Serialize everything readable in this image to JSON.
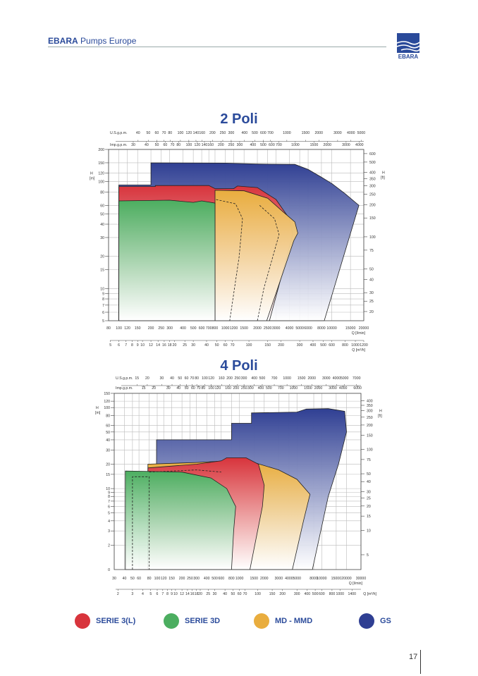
{
  "header": {
    "brand": "EBARA",
    "subtitle": "Pumps Europe",
    "logo_text": "EBARA"
  },
  "colors": {
    "blue": "#2f3f93",
    "red": "#d8343c",
    "yellow": "#e9ad3e",
    "green": "#4cae60",
    "accent": "#2b4b9b"
  },
  "chart_data": [
    {
      "type": "area",
      "title": "2 Poli",
      "xlabel": "Q [l/min]",
      "x2label": "Q [m³/h]",
      "ylabel": "H [m]",
      "y2label": "H [ft]",
      "xlim": [
        80,
        20000
      ],
      "ylim": [
        5,
        200
      ],
      "scale": "log-log",
      "top1_label": "U.S.g.p.m.",
      "top2_label": "Imp.g.p.m.",
      "usgpm_ticks": [
        40,
        50,
        60,
        70,
        80,
        100,
        120,
        140,
        160,
        200,
        250,
        300,
        400,
        500,
        600,
        700,
        1000,
        1500,
        2000,
        3000,
        4000,
        5000
      ],
      "impgpm_ticks": [
        30,
        40,
        50,
        60,
        70,
        80,
        100,
        120,
        140,
        160,
        200,
        250,
        300,
        400,
        500,
        600,
        700,
        1000,
        1500,
        2000,
        3000,
        4000
      ],
      "lmin_ticks": [
        80,
        100,
        120,
        150,
        200,
        250,
        300,
        400,
        500,
        600,
        700,
        800,
        1000,
        1200,
        1500,
        2000,
        2500,
        3000,
        4000,
        5000,
        6000,
        8000,
        10000,
        15000,
        20000
      ],
      "m3h_ticks": [
        5,
        6,
        7,
        8,
        9,
        10,
        12,
        14,
        16,
        18,
        20,
        25,
        30,
        40,
        50,
        60,
        70,
        100,
        150,
        200,
        300,
        400,
        500,
        600,
        800,
        1000,
        1200
      ],
      "h_ticks": [
        200,
        150,
        120,
        100,
        80,
        60,
        50,
        40,
        30,
        20,
        15,
        10,
        9,
        8,
        7,
        6,
        5
      ],
      "ft_ticks": [
        600,
        500,
        400,
        350,
        300,
        250,
        200,
        150,
        100,
        75,
        50,
        40,
        30,
        25,
        20
      ],
      "series": [
        {
          "name": "GS",
          "color": "blue",
          "points": [
            [
              100,
              5
            ],
            [
              100,
              93
            ],
            [
              200,
              93
            ],
            [
              200,
              150
            ],
            [
              1000,
              149
            ],
            [
              2000,
              146
            ],
            [
              4500,
              145
            ],
            [
              6000,
              130
            ],
            [
              8000,
              110
            ],
            [
              10000,
              96
            ],
            [
              13400,
              77
            ],
            [
              18000,
              60
            ],
            [
              8500,
              5
            ]
          ]
        },
        {
          "name": "SERIE 3(L)",
          "color": "red",
          "points": [
            [
              100,
              5
            ],
            [
              100,
              90
            ],
            [
              220,
              90
            ],
            [
              220,
              92
            ],
            [
              700,
              92
            ],
            [
              800,
              86
            ],
            [
              1200,
              86
            ],
            [
              1300,
              91
            ],
            [
              2000,
              88
            ],
            [
              3000,
              68
            ],
            [
              4000,
              45
            ],
            [
              4300,
              32
            ],
            [
              2600,
              5
            ]
          ]
        },
        {
          "name": "MD - MMD",
          "color": "yellow",
          "points": [
            [
              800,
              5
            ],
            [
              800,
              83
            ],
            [
              1500,
              82
            ],
            [
              2500,
              70
            ],
            [
              3500,
              52
            ],
            [
              4500,
              42
            ],
            [
              4800,
              33
            ],
            [
              4400,
              28
            ],
            [
              2450,
              5
            ]
          ]
        },
        {
          "name": "SERIE 3D",
          "color": "green",
          "points": [
            [
              100,
              5
            ],
            [
              100,
              66
            ],
            [
              300,
              67
            ],
            [
              500,
              64
            ],
            [
              600,
              66
            ],
            [
              800,
              63
            ],
            [
              800,
              5
            ]
          ]
        }
      ],
      "dashed": [
        [
          [
            820,
            68
          ],
          [
            1250,
            62
          ],
          [
            1450,
            45
          ],
          [
            1350,
            20
          ],
          [
            1100,
            5
          ]
        ],
        [
          [
            2100,
            60
          ],
          [
            2900,
            45
          ],
          [
            3200,
            32
          ],
          [
            2300,
            10
          ],
          [
            2000,
            5
          ]
        ]
      ]
    },
    {
      "type": "area",
      "title": "4 Poli",
      "xlabel": "Q [l/min]",
      "x2label": "Q [m³/h]",
      "ylabel": "H [m]",
      "y2label": "H [ft]",
      "xlim": [
        30,
        30000
      ],
      "ylim": [
        1,
        150
      ],
      "scale": "log-log",
      "top1_label": "U.S.g.p.m.",
      "top2_label": "Imp.g.p.m.",
      "usgpm_ticks": [
        15,
        20,
        30,
        40,
        50,
        60,
        70,
        80,
        100,
        120,
        160,
        200,
        250,
        300,
        400,
        500,
        700,
        1000,
        1500,
        2000,
        3000,
        4000,
        5000,
        7000
      ],
      "impgpm_ticks": [
        15,
        20,
        30,
        40,
        50,
        60,
        70,
        80,
        100,
        120,
        160,
        200,
        250,
        300,
        400,
        500,
        700,
        1000,
        1500,
        2000,
        3000,
        4000,
        6000
      ],
      "lmin_ticks": [
        30,
        40,
        50,
        60,
        80,
        100,
        120,
        150,
        200,
        250,
        300,
        400,
        500,
        600,
        800,
        1000,
        1500,
        2000,
        3000,
        4000,
        5000,
        8000,
        10000,
        15000,
        20000,
        30000
      ],
      "m3h_ticks": [
        2,
        3,
        4,
        5,
        6,
        7,
        8,
        9,
        10,
        12,
        14,
        16,
        18,
        20,
        25,
        30,
        40,
        50,
        60,
        70,
        100,
        150,
        200,
        300,
        400,
        500,
        600,
        800,
        1000,
        1400
      ],
      "h_ticks": [
        150,
        120,
        100,
        80,
        60,
        50,
        40,
        30,
        20,
        15,
        10,
        9,
        8,
        7,
        6,
        5,
        4,
        3,
        2
      ],
      "h_zero_label": "0",
      "ft_ticks": [
        400,
        350,
        300,
        250,
        200,
        150,
        100,
        75,
        50,
        40,
        30,
        25,
        20,
        15,
        10,
        5
      ],
      "series": [
        {
          "name": "GS",
          "color": "blue",
          "points": [
            [
              98,
              1
            ],
            [
              98,
              40
            ],
            [
              800,
              40
            ],
            [
              800,
              64
            ],
            [
              1400,
              64
            ],
            [
              1400,
              86
            ],
            [
              5000,
              88
            ],
            [
              6500,
              96
            ],
            [
              12000,
              97
            ],
            [
              19000,
              90
            ],
            [
              20000,
              50
            ],
            [
              16000,
              20
            ],
            [
              12000,
              8
            ],
            [
              7700,
              1
            ]
          ]
        },
        {
          "name": "MD - MMD",
          "color": "yellow",
          "points": [
            [
              77,
              1
            ],
            [
              77,
              20
            ],
            [
              300,
              21
            ],
            [
              700,
              22
            ],
            [
              1500,
              21
            ],
            [
              3000,
              17
            ],
            [
              5000,
              13
            ],
            [
              7200,
              8.5
            ],
            [
              6000,
              4
            ],
            [
              4400,
              1
            ]
          ]
        },
        {
          "name": "SERIE 3(L)",
          "color": "red",
          "points": [
            [
              77,
              1
            ],
            [
              77,
              18
            ],
            [
              300,
              20
            ],
            [
              600,
              22
            ],
            [
              700,
              24
            ],
            [
              1200,
              24
            ],
            [
              1700,
              20
            ],
            [
              2000,
              11
            ],
            [
              1900,
              6
            ],
            [
              1340,
              1
            ]
          ]
        },
        {
          "name": "SERIE 3D",
          "color": "green",
          "points": [
            [
              41,
              1
            ],
            [
              41,
              16.5
            ],
            [
              200,
              16
            ],
            [
              450,
              13.5
            ],
            [
              700,
              10
            ],
            [
              900,
              6
            ],
            [
              850,
              3
            ],
            [
              800,
              1
            ]
          ]
        }
      ],
      "dashed": [
        [
          [
            50,
            1
          ],
          [
            50,
            14
          ],
          [
            80,
            14
          ],
          [
            80,
            1
          ]
        ],
        [
          [
            80,
            16
          ],
          [
            300,
            17
          ],
          [
            600,
            16
          ]
        ]
      ]
    }
  ],
  "legend": [
    {
      "label": "SERIE 3(L)",
      "color": "red"
    },
    {
      "label": "SERIE 3D",
      "color": "green"
    },
    {
      "label": "MD - MMD",
      "color": "yellow"
    },
    {
      "label": "GS",
      "color": "blue"
    }
  ],
  "page_number": "17"
}
